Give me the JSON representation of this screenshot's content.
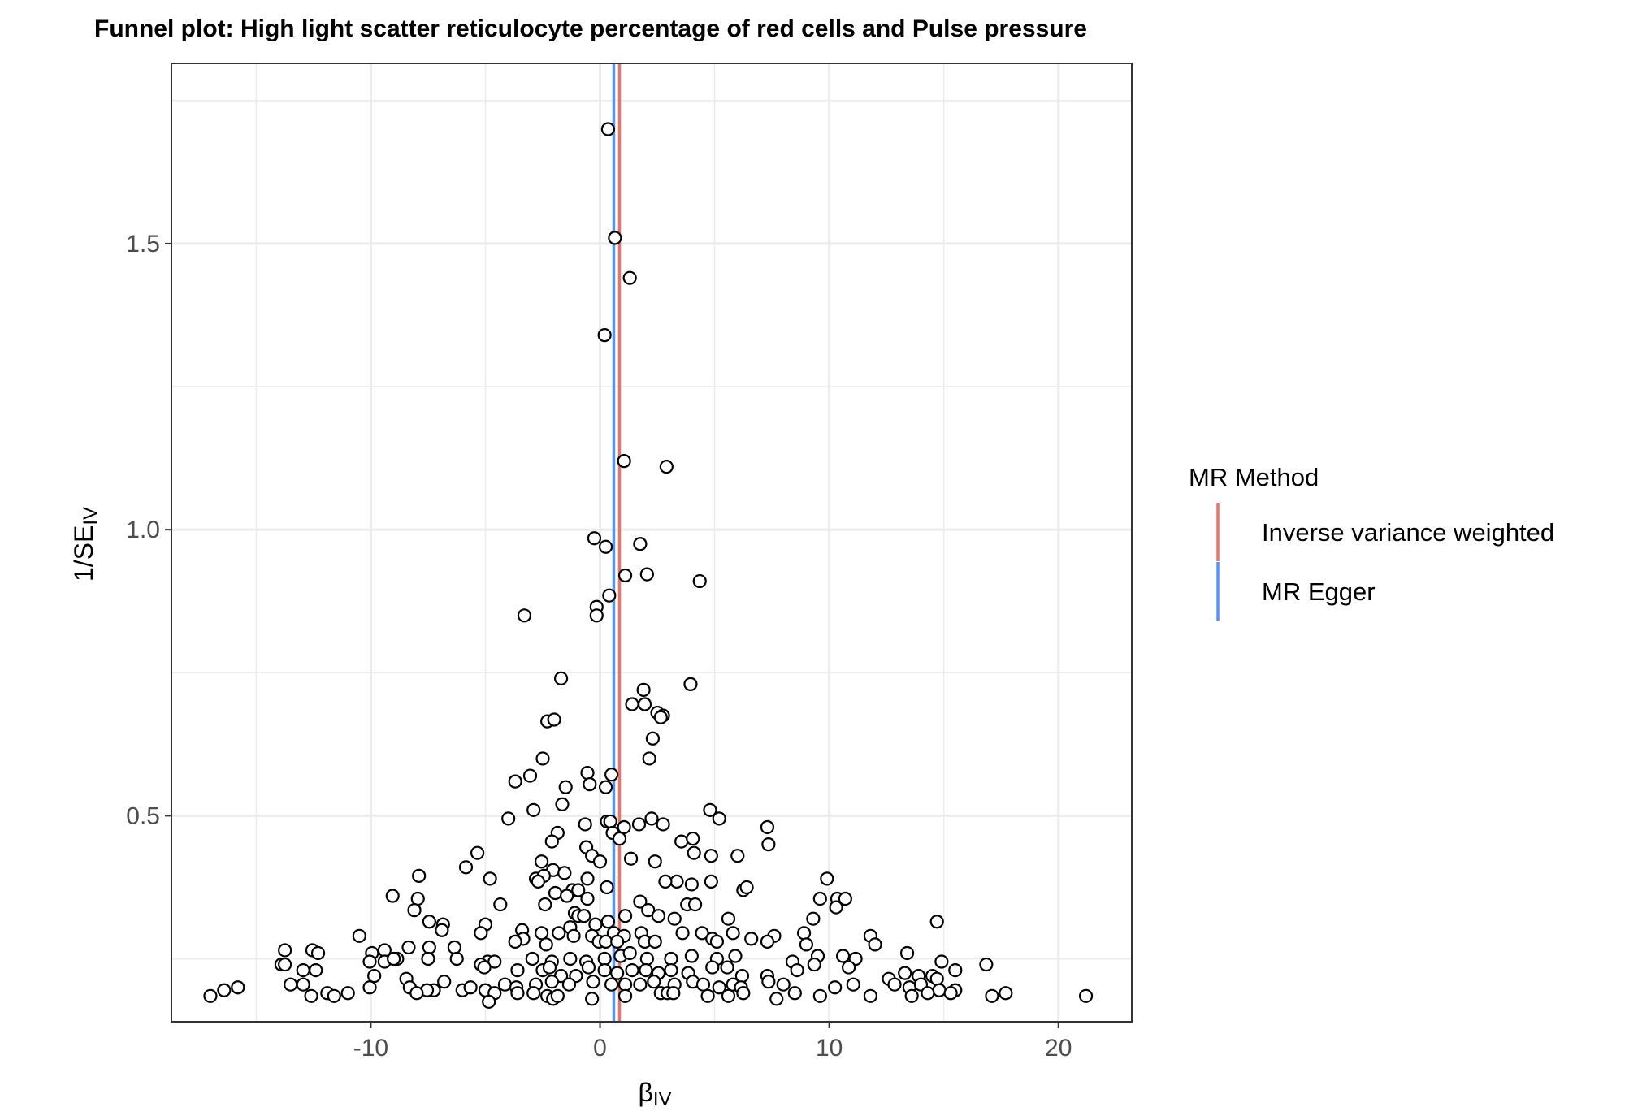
{
  "chart_data": {
    "type": "scatter",
    "title": "Funnel plot: High light scatter reticulocyte percentage of red cells and Pulse pressure",
    "xlabel": {
      "main": "β",
      "sub": "IV"
    },
    "ylabel": {
      "main": "1/SE",
      "sub": "IV"
    },
    "xlim": [
      -18.7,
      23.2
    ],
    "ylim": [
      0.14,
      1.815
    ],
    "x_ticks": [
      -10,
      0,
      10,
      20
    ],
    "x_tick_labels": [
      "-10",
      "0",
      "10",
      "20"
    ],
    "y_ticks": [
      0.5,
      1.0,
      1.5
    ],
    "y_tick_labels": [
      "0.5",
      "1.0",
      "1.5"
    ],
    "grid": true,
    "legend": {
      "title": "MR Method",
      "position": "right",
      "items": [
        {
          "label": "Inverse variance weighted",
          "color": "#E7756A",
          "x": 0.85
        },
        {
          "label": "MR Egger",
          "color": "#5393FF",
          "x": 0.6
        }
      ]
    },
    "series": [
      {
        "marker": "open-circle",
        "points": [
          [
            0.35,
            1.7
          ],
          [
            0.65,
            1.51
          ],
          [
            1.3,
            1.44
          ],
          [
            0.2,
            1.34
          ],
          [
            1.05,
            1.12
          ],
          [
            2.9,
            1.11
          ],
          [
            -0.25,
            0.985
          ],
          [
            0.25,
            0.97
          ],
          [
            1.75,
            0.975
          ],
          [
            1.1,
            0.92
          ],
          [
            2.05,
            0.922
          ],
          [
            4.35,
            0.91
          ],
          [
            0.4,
            0.885
          ],
          [
            -0.15,
            0.865
          ],
          [
            -0.15,
            0.85
          ],
          [
            -3.3,
            0.85
          ],
          [
            -1.7,
            0.74
          ],
          [
            3.95,
            0.73
          ],
          [
            1.9,
            0.72
          ],
          [
            1.4,
            0.695
          ],
          [
            1.95,
            0.695
          ],
          [
            2.5,
            0.68
          ],
          [
            2.75,
            0.675
          ],
          [
            2.65,
            0.672
          ],
          [
            -2.3,
            0.665
          ],
          [
            -2.0,
            0.668
          ],
          [
            2.3,
            0.635
          ],
          [
            2.15,
            0.6
          ],
          [
            -2.5,
            0.6
          ],
          [
            -0.55,
            0.575
          ],
          [
            0.5,
            0.572
          ],
          [
            -3.05,
            0.57
          ],
          [
            -3.7,
            0.56
          ],
          [
            -1.5,
            0.55
          ],
          [
            -0.45,
            0.555
          ],
          [
            0.25,
            0.55
          ],
          [
            -1.65,
            0.52
          ],
          [
            -2.9,
            0.51
          ],
          [
            4.8,
            0.51
          ],
          [
            5.2,
            0.495
          ],
          [
            -4.0,
            0.495
          ],
          [
            0.3,
            0.49
          ],
          [
            0.45,
            0.49
          ],
          [
            2.25,
            0.495
          ],
          [
            2.75,
            0.485
          ],
          [
            1.7,
            0.485
          ],
          [
            -0.65,
            0.485
          ],
          [
            1.05,
            0.48
          ],
          [
            7.3,
            0.48
          ],
          [
            0.55,
            0.47
          ],
          [
            0.85,
            0.46
          ],
          [
            -1.85,
            0.47
          ],
          [
            -2.1,
            0.455
          ],
          [
            3.55,
            0.455
          ],
          [
            4.05,
            0.46
          ],
          [
            7.35,
            0.45
          ],
          [
            -0.6,
            0.445
          ],
          [
            -0.35,
            0.43
          ],
          [
            4.1,
            0.435
          ],
          [
            4.85,
            0.43
          ],
          [
            6.0,
            0.43
          ],
          [
            1.35,
            0.425
          ],
          [
            2.4,
            0.42
          ],
          [
            -2.55,
            0.42
          ],
          [
            0.0,
            0.42
          ],
          [
            -5.85,
            0.41
          ],
          [
            -2.05,
            0.405
          ],
          [
            -1.55,
            0.4
          ],
          [
            -0.55,
            0.39
          ],
          [
            -5.35,
            0.435
          ],
          [
            -4.8,
            0.39
          ],
          [
            -2.8,
            0.39
          ],
          [
            -2.45,
            0.395
          ],
          [
            -2.7,
            0.385
          ],
          [
            3.35,
            0.385
          ],
          [
            4.0,
            0.38
          ],
          [
            4.85,
            0.385
          ],
          [
            2.85,
            0.385
          ],
          [
            9.9,
            0.39
          ],
          [
            -7.9,
            0.395
          ],
          [
            0.3,
            0.375
          ],
          [
            -1.2,
            0.37
          ],
          [
            -0.95,
            0.37
          ],
          [
            -1.95,
            0.365
          ],
          [
            6.25,
            0.37
          ],
          [
            6.4,
            0.375
          ],
          [
            -9.05,
            0.36
          ],
          [
            -7.95,
            0.355
          ],
          [
            9.6,
            0.355
          ],
          [
            10.35,
            0.355
          ],
          [
            10.7,
            0.355
          ],
          [
            -0.55,
            0.355
          ],
          [
            -1.45,
            0.36
          ],
          [
            1.75,
            0.35
          ],
          [
            3.8,
            0.345
          ],
          [
            4.15,
            0.345
          ],
          [
            -4.35,
            0.345
          ],
          [
            -8.1,
            0.335
          ],
          [
            2.1,
            0.335
          ],
          [
            10.3,
            0.34
          ],
          [
            -2.4,
            0.345
          ],
          [
            -1.1,
            0.33
          ],
          [
            -0.95,
            0.325
          ],
          [
            -0.7,
            0.325
          ],
          [
            1.1,
            0.325
          ],
          [
            2.55,
            0.325
          ],
          [
            3.25,
            0.32
          ],
          [
            5.6,
            0.32
          ],
          [
            -7.45,
            0.315
          ],
          [
            -6.85,
            0.31
          ],
          [
            -5.0,
            0.31
          ],
          [
            -3.4,
            0.3
          ],
          [
            14.7,
            0.315
          ],
          [
            9.3,
            0.32
          ],
          [
            0.35,
            0.315
          ],
          [
            -0.2,
            0.31
          ],
          [
            -1.3,
            0.305
          ],
          [
            -6.9,
            0.3
          ],
          [
            -5.2,
            0.295
          ],
          [
            -2.55,
            0.295
          ],
          [
            -1.8,
            0.295
          ],
          [
            0.6,
            0.295
          ],
          [
            1.8,
            0.295
          ],
          [
            3.6,
            0.295
          ],
          [
            4.45,
            0.295
          ],
          [
            5.8,
            0.295
          ],
          [
            -1.15,
            0.29
          ],
          [
            -0.35,
            0.29
          ],
          [
            1.05,
            0.29
          ],
          [
            -3.35,
            0.285
          ],
          [
            8.9,
            0.295
          ],
          [
            11.8,
            0.29
          ],
          [
            -10.5,
            0.29
          ],
          [
            4.9,
            0.285
          ],
          [
            6.6,
            0.285
          ],
          [
            7.6,
            0.29
          ],
          [
            -0.05,
            0.28
          ],
          [
            0.25,
            0.28
          ],
          [
            0.75,
            0.28
          ],
          [
            1.95,
            0.28
          ],
          [
            2.4,
            0.28
          ],
          [
            -2.35,
            0.275
          ],
          [
            -3.7,
            0.28
          ],
          [
            -8.35,
            0.27
          ],
          [
            -7.45,
            0.27
          ],
          [
            -6.35,
            0.27
          ],
          [
            5.1,
            0.28
          ],
          [
            7.3,
            0.28
          ],
          [
            9.0,
            0.275
          ],
          [
            12.0,
            0.275
          ],
          [
            -13.75,
            0.265
          ],
          [
            -12.55,
            0.265
          ],
          [
            -12.3,
            0.26
          ],
          [
            -9.95,
            0.26
          ],
          [
            -9.4,
            0.265
          ],
          [
            -8.85,
            0.25
          ],
          [
            -7.5,
            0.25
          ],
          [
            -6.25,
            0.25
          ],
          [
            -4.9,
            0.245
          ],
          [
            -4.6,
            0.245
          ],
          [
            -2.95,
            0.25
          ],
          [
            -2.1,
            0.245
          ],
          [
            -1.3,
            0.25
          ],
          [
            -0.6,
            0.245
          ],
          [
            0.2,
            0.25
          ],
          [
            0.9,
            0.255
          ],
          [
            1.3,
            0.26
          ],
          [
            2.05,
            0.25
          ],
          [
            3.1,
            0.25
          ],
          [
            4.0,
            0.255
          ],
          [
            5.1,
            0.25
          ],
          [
            5.9,
            0.255
          ],
          [
            8.4,
            0.245
          ],
          [
            9.5,
            0.255
          ],
          [
            10.6,
            0.255
          ],
          [
            11.15,
            0.25
          ],
          [
            13.4,
            0.26
          ],
          [
            14.9,
            0.245
          ],
          [
            16.85,
            0.24
          ],
          [
            -13.9,
            0.24
          ],
          [
            -13.75,
            0.24
          ],
          [
            -12.95,
            0.23
          ],
          [
            -12.4,
            0.23
          ],
          [
            -10.05,
            0.245
          ],
          [
            -9.4,
            0.245
          ],
          [
            -9.0,
            0.25
          ],
          [
            -8.45,
            0.215
          ],
          [
            -8.3,
            0.2
          ],
          [
            -7.25,
            0.195
          ],
          [
            -6.8,
            0.21
          ],
          [
            -5.2,
            0.24
          ],
          [
            -5.05,
            0.235
          ],
          [
            -3.6,
            0.23
          ],
          [
            -2.5,
            0.23
          ],
          [
            -2.2,
            0.235
          ],
          [
            -1.7,
            0.22
          ],
          [
            -1.05,
            0.22
          ],
          [
            -0.5,
            0.235
          ],
          [
            0.2,
            0.23
          ],
          [
            0.75,
            0.225
          ],
          [
            1.4,
            0.23
          ],
          [
            2.0,
            0.23
          ],
          [
            2.55,
            0.225
          ],
          [
            3.1,
            0.23
          ],
          [
            3.85,
            0.225
          ],
          [
            4.9,
            0.235
          ],
          [
            5.55,
            0.235
          ],
          [
            6.2,
            0.22
          ],
          [
            7.3,
            0.22
          ],
          [
            8.6,
            0.23
          ],
          [
            9.35,
            0.24
          ],
          [
            10.85,
            0.235
          ],
          [
            12.6,
            0.215
          ],
          [
            13.3,
            0.225
          ],
          [
            13.9,
            0.22
          ],
          [
            14.5,
            0.22
          ],
          [
            14.7,
            0.215
          ],
          [
            15.5,
            0.23
          ],
          [
            -13.5,
            0.205
          ],
          [
            -12.95,
            0.205
          ],
          [
            -10.05,
            0.2
          ],
          [
            -9.85,
            0.22
          ],
          [
            -7.55,
            0.195
          ],
          [
            -6.0,
            0.195
          ],
          [
            -5.65,
            0.2
          ],
          [
            -5.0,
            0.195
          ],
          [
            -4.15,
            0.205
          ],
          [
            -3.65,
            0.2
          ],
          [
            -2.8,
            0.205
          ],
          [
            -2.1,
            0.21
          ],
          [
            -1.35,
            0.205
          ],
          [
            -0.3,
            0.21
          ],
          [
            0.5,
            0.205
          ],
          [
            1.1,
            0.205
          ],
          [
            1.75,
            0.205
          ],
          [
            2.35,
            0.21
          ],
          [
            3.25,
            0.205
          ],
          [
            4.05,
            0.21
          ],
          [
            4.5,
            0.205
          ],
          [
            5.2,
            0.2
          ],
          [
            5.8,
            0.205
          ],
          [
            6.15,
            0.2
          ],
          [
            7.35,
            0.21
          ],
          [
            8.0,
            0.205
          ],
          [
            10.25,
            0.2
          ],
          [
            11.05,
            0.205
          ],
          [
            12.85,
            0.205
          ],
          [
            13.5,
            0.2
          ],
          [
            14.0,
            0.205
          ],
          [
            14.8,
            0.195
          ],
          [
            15.5,
            0.195
          ],
          [
            -15.8,
            0.2
          ],
          [
            -16.4,
            0.195
          ],
          [
            -17.0,
            0.185
          ],
          [
            -12.6,
            0.185
          ],
          [
            -11.9,
            0.19
          ],
          [
            -11.6,
            0.185
          ],
          [
            -11.0,
            0.19
          ],
          [
            -8.0,
            0.19
          ],
          [
            -4.6,
            0.19
          ],
          [
            -4.85,
            0.175
          ],
          [
            -3.6,
            0.19
          ],
          [
            -2.9,
            0.19
          ],
          [
            -2.3,
            0.185
          ],
          [
            -2.05,
            0.18
          ],
          [
            -1.85,
            0.185
          ],
          [
            -0.35,
            0.18
          ],
          [
            1.1,
            0.185
          ],
          [
            2.65,
            0.19
          ],
          [
            2.95,
            0.19
          ],
          [
            3.2,
            0.19
          ],
          [
            4.7,
            0.185
          ],
          [
            5.6,
            0.185
          ],
          [
            6.25,
            0.19
          ],
          [
            7.7,
            0.18
          ],
          [
            8.5,
            0.19
          ],
          [
            9.6,
            0.185
          ],
          [
            11.8,
            0.185
          ],
          [
            13.6,
            0.185
          ],
          [
            14.3,
            0.19
          ],
          [
            15.3,
            0.19
          ],
          [
            17.1,
            0.185
          ],
          [
            17.7,
            0.19
          ],
          [
            21.2,
            0.185
          ]
        ]
      }
    ]
  }
}
